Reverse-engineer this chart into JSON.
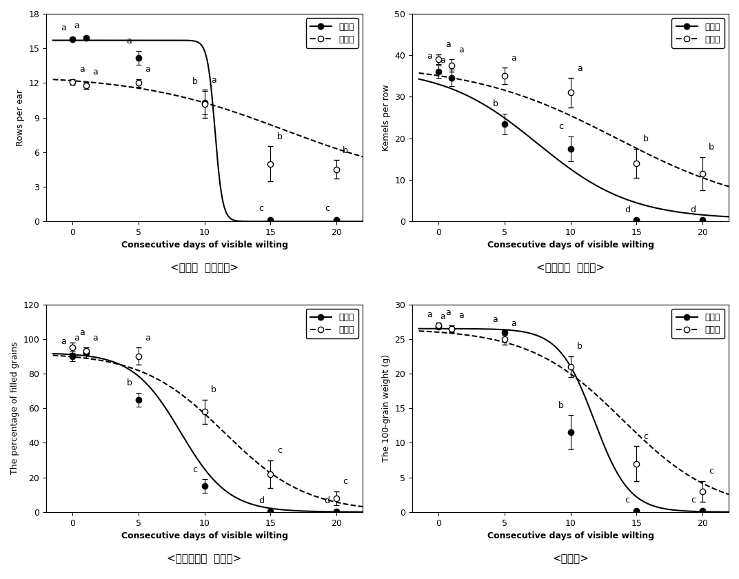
{
  "title_fontsize": 11,
  "axis_label_fontsize": 9,
  "tick_fontsize": 9,
  "annotation_fontsize": 9,
  "background_color": "#ffffff",
  "subplots": [
    {
      "title": "<이삭당  종실줄수>",
      "ylabel": "Rows per ear",
      "xlabel": "Consecutive days of visible wilting",
      "ylim": [
        0,
        18
      ],
      "yticks": [
        0,
        3,
        6,
        9,
        12,
        15,
        18
      ],
      "xlim": [
        -2,
        22
      ],
      "xticks": [
        0,
        5,
        10,
        15,
        20
      ],
      "solid_x": [
        0,
        1,
        5,
        10,
        15,
        20
      ],
      "solid_y": [
        15.8,
        15.9,
        14.2,
        10.3,
        0.15,
        0.15
      ],
      "solid_yerr": [
        0.15,
        0.2,
        0.6,
        1.0,
        0.1,
        0.1
      ],
      "solid_labels": [
        "a",
        "a",
        "a",
        "b",
        "c",
        "c"
      ],
      "dashed_x": [
        0,
        1,
        5,
        10,
        15,
        20
      ],
      "dashed_y": [
        12.1,
        11.8,
        12.0,
        10.2,
        5.0,
        4.5
      ],
      "dashed_yerr": [
        0.25,
        0.3,
        0.35,
        1.2,
        1.5,
        0.8
      ],
      "dashed_labels": [
        "a",
        "a",
        "a",
        "a",
        "b",
        "b"
      ],
      "curve_solid": [
        15.7,
        3.5,
        10.8,
        0.0
      ],
      "curve_dashed": [
        9.5,
        0.18,
        16.0,
        3.2
      ],
      "legend_loc": "upper right"
    },
    {
      "title": "<종실줄당  종실수>",
      "ylabel": "Kemels per row",
      "xlabel": "Consecutive days of visible wilting",
      "ylim": [
        0,
        50
      ],
      "yticks": [
        0,
        10,
        20,
        30,
        40,
        50
      ],
      "xlim": [
        -2,
        22
      ],
      "xticks": [
        0,
        5,
        10,
        15,
        20
      ],
      "solid_x": [
        0,
        1,
        5,
        10,
        15,
        20
      ],
      "solid_y": [
        36.0,
        34.5,
        23.5,
        17.5,
        0.3,
        0.3
      ],
      "solid_yerr": [
        1.5,
        2.0,
        2.5,
        3.0,
        0.2,
        0.2
      ],
      "solid_labels": [
        "a",
        "a",
        "b",
        "c",
        "d",
        "d"
      ],
      "dashed_x": [
        0,
        1,
        5,
        10,
        15,
        20
      ],
      "dashed_y": [
        39.0,
        37.5,
        35.0,
        31.0,
        14.0,
        11.5
      ],
      "dashed_yerr": [
        1.2,
        1.5,
        2.0,
        3.5,
        3.5,
        4.0
      ],
      "dashed_labels": [
        "a",
        "a",
        "a",
        "a",
        "b",
        "b"
      ],
      "curve_solid": [
        36.5,
        0.28,
        7.5,
        0.5
      ],
      "curve_dashed": [
        36.0,
        0.18,
        13.5,
        2.0
      ],
      "legend_loc": "upper right"
    },
    {
      "title": "<등숙종실의  결실률>",
      "ylabel": "The percentage of filled grains",
      "xlabel": "Consecutive days of visible wilting",
      "ylim": [
        0,
        120
      ],
      "yticks": [
        0,
        20,
        40,
        60,
        80,
        100,
        120
      ],
      "xlim": [
        -2,
        22
      ],
      "xticks": [
        0,
        5,
        10,
        15,
        20
      ],
      "solid_x": [
        0,
        1,
        5,
        10,
        15,
        20
      ],
      "solid_y": [
        90.0,
        92.0,
        65.0,
        15.0,
        0.5,
        0.5
      ],
      "solid_yerr": [
        3.0,
        3.0,
        4.0,
        4.0,
        0.3,
        0.3
      ],
      "solid_labels": [
        "a",
        "a",
        "b",
        "c",
        "d",
        "d"
      ],
      "dashed_x": [
        0,
        1,
        5,
        10,
        15,
        20
      ],
      "dashed_y": [
        95.0,
        93.0,
        90.0,
        58.0,
        22.0,
        8.0
      ],
      "dashed_yerr": [
        3.0,
        2.0,
        5.0,
        7.0,
        8.0,
        4.0
      ],
      "dashed_labels": [
        "a",
        "a",
        "a",
        "b",
        "c",
        "c"
      ],
      "curve_solid": [
        92.0,
        0.55,
        8.2,
        0.0
      ],
      "curve_dashed": [
        92.0,
        0.32,
        11.5,
        0.0
      ],
      "legend_loc": "upper right"
    },
    {
      "title": "<백립중>",
      "ylabel": "The 100-grain weight (g)",
      "xlabel": "Consecutive days of visible wilting",
      "ylim": [
        0,
        30
      ],
      "yticks": [
        0,
        5,
        10,
        15,
        20,
        25,
        30
      ],
      "xlim": [
        -2,
        22
      ],
      "xticks": [
        0,
        5,
        10,
        15,
        20
      ],
      "solid_x": [
        0,
        1,
        5,
        10,
        15,
        20
      ],
      "solid_y": [
        26.8,
        26.5,
        26.0,
        11.5,
        0.2,
        0.2
      ],
      "solid_yerr": [
        0.3,
        0.3,
        0.4,
        2.5,
        0.1,
        0.1
      ],
      "solid_labels": [
        "a",
        "a",
        "a",
        "b",
        "c",
        "c"
      ],
      "dashed_x": [
        0,
        1,
        5,
        10,
        15,
        20
      ],
      "dashed_y": [
        27.0,
        26.5,
        25.0,
        21.0,
        7.0,
        3.0
      ],
      "dashed_yerr": [
        0.4,
        0.5,
        0.8,
        1.5,
        2.5,
        1.5
      ],
      "dashed_labels": [
        "a",
        "a",
        "a",
        "b",
        "c",
        "c"
      ],
      "curve_solid": [
        26.5,
        0.75,
        11.8,
        0.0
      ],
      "curve_dashed": [
        26.5,
        0.28,
        14.0,
        0.0
      ],
      "legend_loc": "upper right"
    }
  ],
  "legend_solid_label": "광평옥",
  "legend_dashed_label": "일미찰"
}
